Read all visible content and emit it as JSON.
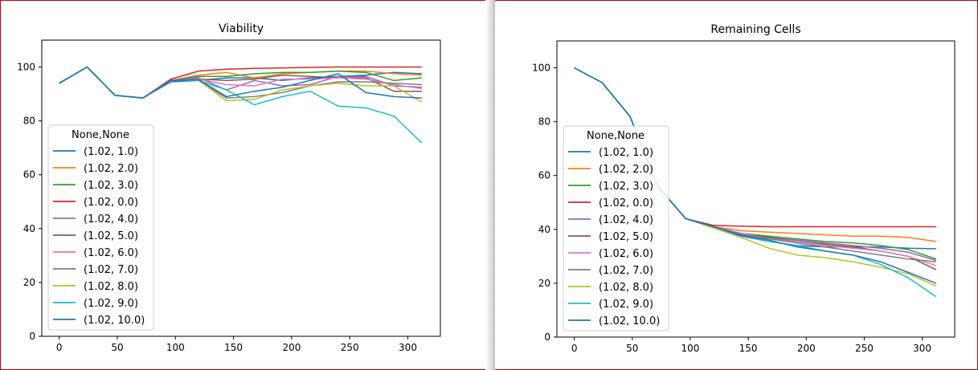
{
  "chart_data": [
    {
      "type": "line",
      "title": "Viability",
      "xlabel": "",
      "ylabel": "",
      "xlim": [
        -15,
        328
      ],
      "ylim": [
        0,
        110
      ],
      "x_ticks": [
        0,
        50,
        100,
        150,
        200,
        250,
        300
      ],
      "y_ticks": [
        0,
        20,
        40,
        60,
        80,
        100
      ],
      "legend": {
        "title": "None,None",
        "placement": "center-left"
      },
      "x": [
        0,
        24,
        48,
        72,
        96,
        120,
        144,
        168,
        192,
        216,
        240,
        264,
        288,
        312
      ],
      "series": [
        {
          "name": "(1.02, 1.0)",
          "color": "#1f77b4",
          "values": [
            94,
            100,
            89.5,
            88.5,
            94.5,
            95,
            96,
            96,
            95,
            96,
            96.5,
            97,
            98,
            97.5
          ]
        },
        {
          "name": "(1.02, 2.0)",
          "color": "#ff7f0e",
          "values": [
            94,
            100,
            89.5,
            88.5,
            95,
            97,
            98,
            96,
            97.5,
            98,
            98.5,
            98.5,
            97.5,
            97
          ]
        },
        {
          "name": "(1.02, 3.0)",
          "color": "#2ca02c",
          "values": [
            94,
            100,
            89.5,
            88.5,
            95,
            96.5,
            96.5,
            97.5,
            98,
            98,
            98.5,
            98,
            95,
            96
          ]
        },
        {
          "name": "(1.02, 0.0)",
          "color": "#d62728",
          "values": [
            94,
            100,
            89.5,
            88.5,
            95.5,
            98.5,
            99.2,
            99.5,
            99.7,
            99.9,
            100,
            100,
            100,
            100
          ]
        },
        {
          "name": "(1.02, 4.0)",
          "color": "#9467bd",
          "values": [
            94,
            100,
            89.5,
            88.5,
            95,
            96,
            91.5,
            95,
            93,
            93.5,
            96.5,
            96.5,
            93,
            92.5
          ]
        },
        {
          "name": "(1.02, 5.0)",
          "color": "#8c564b",
          "values": [
            94,
            100,
            89.5,
            88.5,
            95,
            95.5,
            95,
            95.5,
            97,
            96.5,
            96,
            96,
            91,
            91
          ]
        },
        {
          "name": "(1.02, 6.0)",
          "color": "#e377c2",
          "values": [
            94,
            100,
            89.5,
            88.5,
            95,
            95.5,
            93.5,
            93,
            95.5,
            95.5,
            96,
            95.5,
            93.5,
            92
          ]
        },
        {
          "name": "(1.02, 7.0)",
          "color": "#7f7f7f",
          "values": [
            94,
            100,
            89.5,
            88.5,
            95,
            95,
            88.5,
            89,
            90.5,
            93,
            94.5,
            94.5,
            94,
            93.5
          ]
        },
        {
          "name": "(1.02, 8.0)",
          "color": "#bcbd22",
          "values": [
            94,
            100,
            89.5,
            88.5,
            95,
            95,
            87.5,
            88,
            91.5,
            93,
            94,
            93,
            93,
            87
          ]
        },
        {
          "name": "(1.02, 9.0)",
          "color": "#17becf",
          "values": [
            94,
            100,
            89.5,
            88.5,
            95,
            95,
            91.5,
            86,
            89,
            91,
            85.5,
            84.8,
            81.8,
            71.8
          ]
        },
        {
          "name": "(1.02, 10.0)",
          "color": "#1f77b4",
          "values": [
            94,
            100,
            89.5,
            88.5,
            95,
            95.3,
            89,
            91,
            92.5,
            95,
            97.5,
            90.5,
            89,
            88.5
          ]
        }
      ]
    },
    {
      "type": "line",
      "title": "Remaining Cells",
      "xlabel": "",
      "ylabel": "",
      "xlim": [
        -15,
        328
      ],
      "ylim": [
        0,
        110
      ],
      "x_ticks": [
        0,
        50,
        100,
        150,
        200,
        250,
        300
      ],
      "y_ticks": [
        0,
        20,
        40,
        60,
        80,
        100
      ],
      "legend": {
        "title": "None,None",
        "placement": "center-left"
      },
      "x": [
        0,
        24,
        48,
        72,
        96,
        120,
        144,
        168,
        192,
        216,
        240,
        264,
        288,
        312
      ],
      "series": [
        {
          "name": "(1.02, 1.0)",
          "color": "#1f77b4",
          "values": [
            100,
            94.5,
            82,
            56,
            44,
            41,
            37.5,
            35.5,
            34,
            33.5,
            33.5,
            33.5,
            33,
            32.8
          ]
        },
        {
          "name": "(1.02, 2.0)",
          "color": "#ff7f0e",
          "values": [
            100,
            94.5,
            82,
            56,
            44,
            41,
            39.5,
            39,
            38.5,
            38,
            37.5,
            37.5,
            37,
            35.5
          ]
        },
        {
          "name": "(1.02, 3.0)",
          "color": "#2ca02c",
          "values": [
            100,
            94.5,
            82,
            56,
            44,
            41,
            38.5,
            37.5,
            36.5,
            35.5,
            35,
            34,
            32.5,
            29
          ]
        },
        {
          "name": "(1.02, 0.0)",
          "color": "#d62728",
          "values": [
            100,
            94.5,
            82,
            56,
            44,
            41.5,
            41.2,
            41,
            41,
            41,
            41,
            41,
            41,
            41
          ]
        },
        {
          "name": "(1.02, 4.0)",
          "color": "#9467bd",
          "values": [
            100,
            94.5,
            82,
            56,
            44,
            41,
            38.5,
            37,
            36,
            35,
            34,
            33,
            31.5,
            28.5
          ]
        },
        {
          "name": "(1.02, 5.0)",
          "color": "#8c564b",
          "values": [
            100,
            94.5,
            82,
            56,
            44,
            41,
            38.5,
            37,
            35.5,
            34.5,
            33.5,
            32,
            30,
            25
          ]
        },
        {
          "name": "(1.02, 6.0)",
          "color": "#e377c2",
          "values": [
            100,
            94.5,
            82,
            56,
            44,
            41,
            38.5,
            36.5,
            35.5,
            34,
            33,
            32,
            30,
            26.5
          ]
        },
        {
          "name": "(1.02, 7.0)",
          "color": "#7f7f7f",
          "values": [
            100,
            94.5,
            82,
            56,
            44,
            41,
            38,
            36.5,
            35,
            33.5,
            32,
            30.5,
            29,
            28
          ]
        },
        {
          "name": "(1.02, 8.0)",
          "color": "#bcbd22",
          "values": [
            100,
            94.5,
            82,
            56,
            44,
            40.5,
            37,
            33,
            30.5,
            29.5,
            28,
            26,
            23.5,
            19
          ]
        },
        {
          "name": "(1.02, 9.0)",
          "color": "#17becf",
          "values": [
            100,
            94.5,
            82,
            56,
            44,
            41,
            38,
            35.5,
            34,
            32,
            30.5,
            27,
            22,
            15
          ]
        },
        {
          "name": "(1.02, 10.0)",
          "color": "#1f77b4",
          "values": [
            100,
            94.5,
            82,
            56,
            44,
            41,
            38,
            36,
            33.5,
            32,
            30.5,
            28,
            24,
            20
          ]
        }
      ]
    }
  ]
}
